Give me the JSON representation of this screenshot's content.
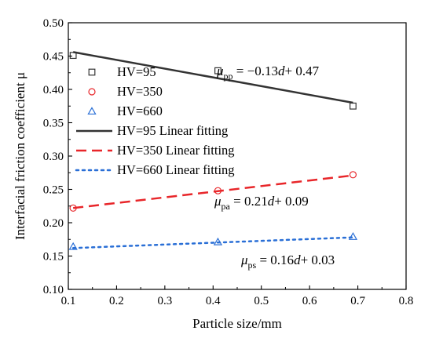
{
  "chart_data": {
    "type": "scatter",
    "xlabel": "Particle size/mm",
    "ylabel": "Interfacial friction coefficient μ",
    "xlim": [
      0.1,
      0.8
    ],
    "ylim": [
      0.1,
      0.5
    ],
    "xticks": [
      "0.1",
      "0.2",
      "0.3",
      "0.4",
      "0.5",
      "0.6",
      "0.7",
      "0.8"
    ],
    "yticks": [
      "0.10",
      "0.15",
      "0.20",
      "0.25",
      "0.30",
      "0.35",
      "0.40",
      "0.45",
      "0.50"
    ],
    "grid": false,
    "legend_position": "top-left",
    "series": [
      {
        "name": "HV=95",
        "marker": "square",
        "color": "#333333",
        "x": [
          0.11,
          0.41,
          0.69
        ],
        "y": [
          0.451,
          0.428,
          0.375
        ]
      },
      {
        "name": "HV=350",
        "marker": "circle",
        "color": "#e8262a",
        "x": [
          0.11,
          0.41,
          0.69
        ],
        "y": [
          0.222,
          0.248,
          0.272
        ]
      },
      {
        "name": "HV=660",
        "marker": "triangle",
        "color": "#2a6fd6",
        "x": [
          0.11,
          0.41,
          0.69
        ],
        "y": [
          0.164,
          0.171,
          0.179
        ]
      }
    ],
    "fits": [
      {
        "name": "HV=95 Linear fitting",
        "style": "solid",
        "color": "#333333",
        "x": [
          0.11,
          0.69
        ],
        "y": [
          0.456,
          0.38
        ]
      },
      {
        "name": "HV=350 Linear fitting",
        "style": "dashed",
        "color": "#e8262a",
        "x": [
          0.11,
          0.69
        ],
        "y": [
          0.222,
          0.271
        ]
      },
      {
        "name": "HV=660 Linear fitting",
        "style": "dotted",
        "color": "#2a6fd6",
        "x": [
          0.11,
          0.69
        ],
        "y": [
          0.162,
          0.178
        ]
      }
    ],
    "annotations": [
      {
        "mu": "μ",
        "sub": "pp",
        "eq_a": " = −0.13",
        "d": "d",
        "eq_b": "+ 0.47"
      },
      {
        "mu": "μ",
        "sub": "pa",
        "eq_a": " = 0.21",
        "d": "d",
        "eq_b": "+ 0.09"
      },
      {
        "mu": "μ",
        "sub": "ps",
        "eq_a": " = 0.16",
        "d": "d",
        "eq_b": "+ 0.03"
      }
    ]
  }
}
